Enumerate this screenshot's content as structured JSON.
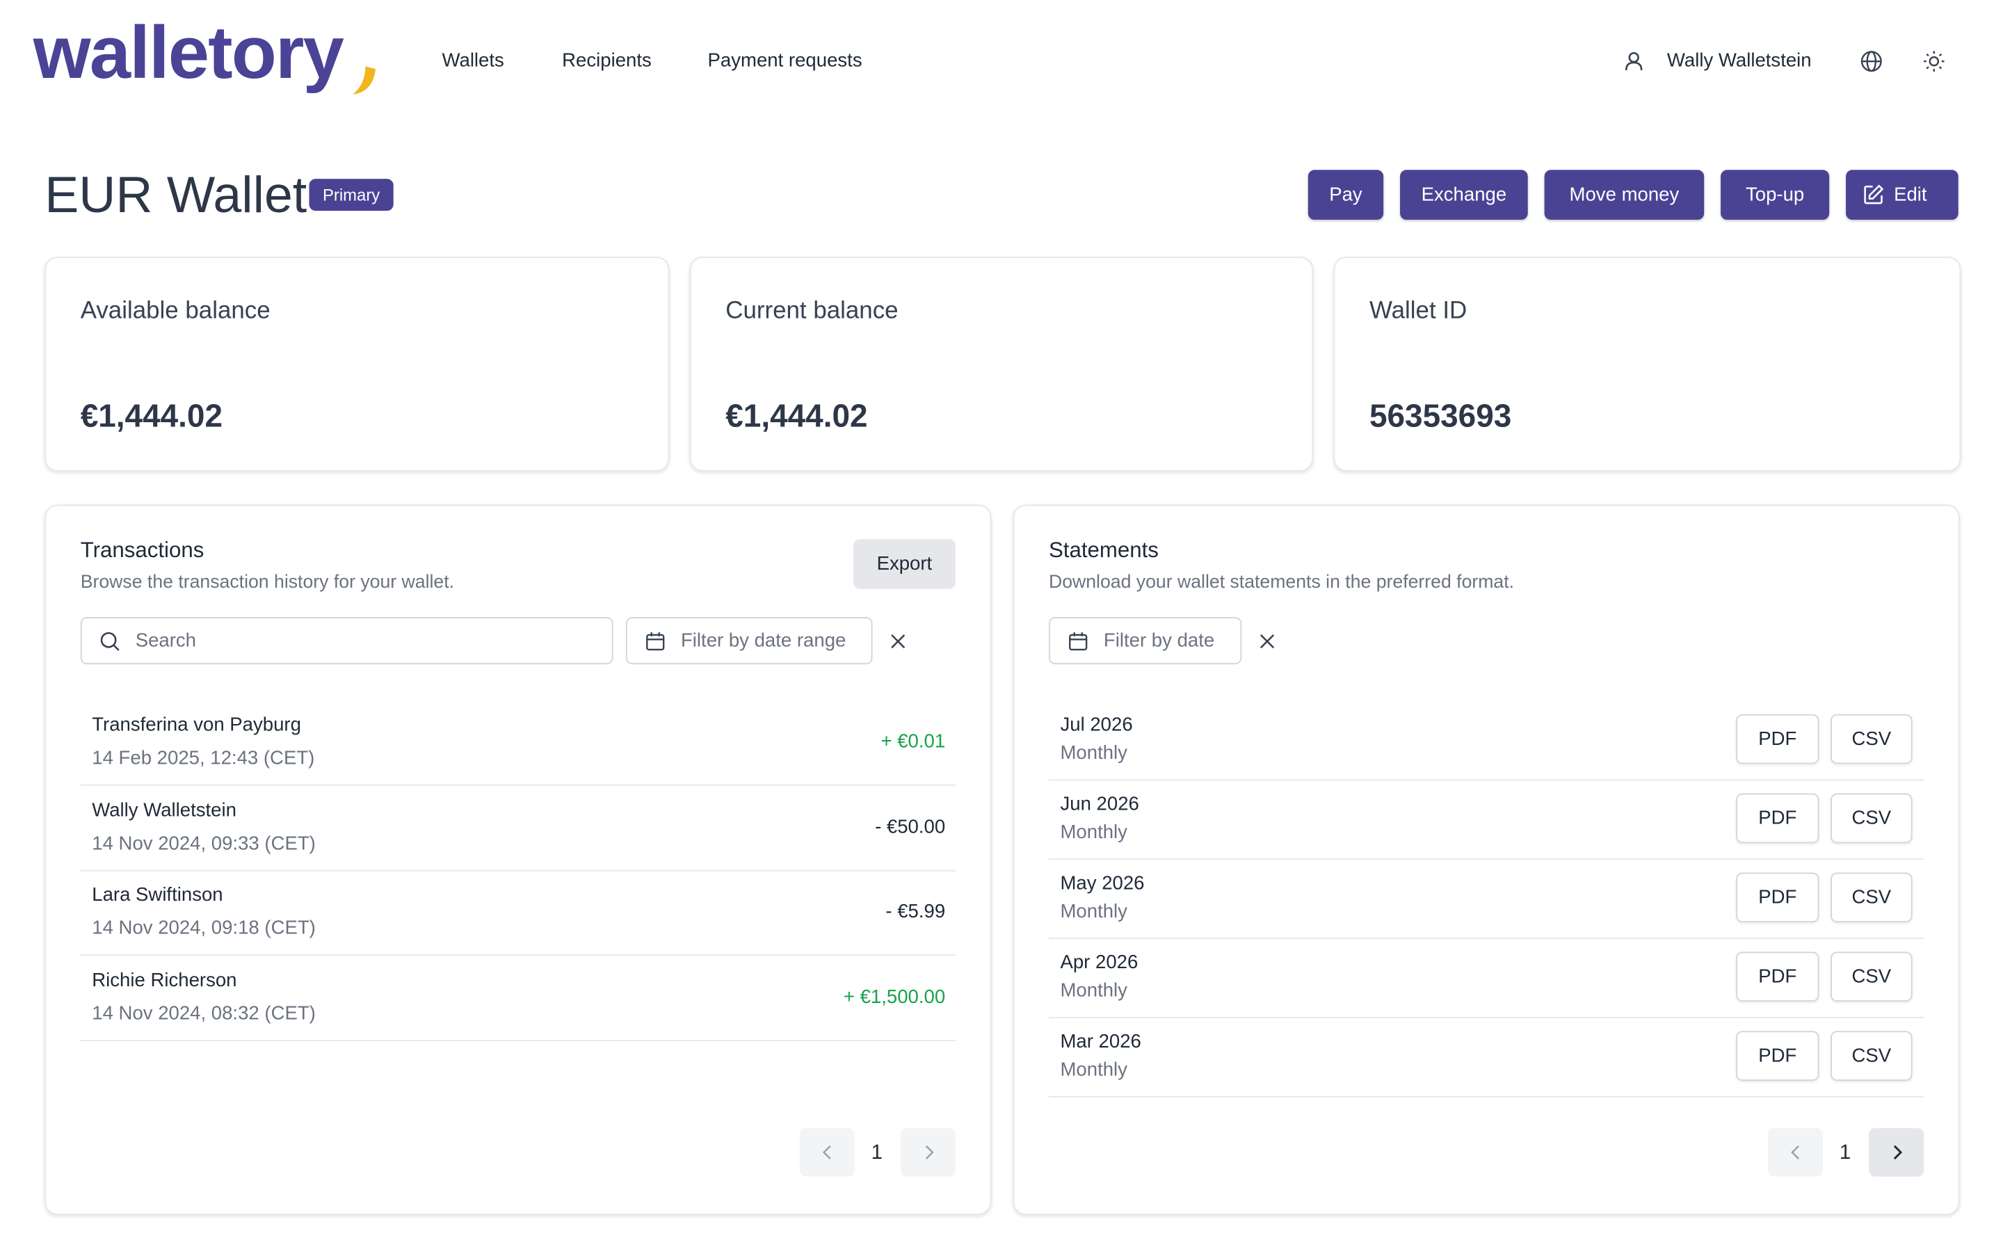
{
  "header": {
    "logo": "walletory",
    "nav": [
      "Wallets",
      "Recipients",
      "Payment requests"
    ],
    "user": "Wally Walletstein"
  },
  "page": {
    "title": "EUR Wallet",
    "badge": "Primary",
    "actions": [
      "Pay",
      "Exchange",
      "Move money",
      "Top-up",
      "Edit"
    ]
  },
  "cards": [
    {
      "label": "Available balance",
      "value": "€1,444.02"
    },
    {
      "label": "Current balance",
      "value": "€1,444.02"
    },
    {
      "label": "Wallet ID",
      "value": "56353693"
    }
  ],
  "transactions": {
    "title": "Transactions",
    "subtitle": "Browse the transaction history for your wallet.",
    "export": "Export",
    "search_placeholder": "Search",
    "date_placeholder": "Filter by date range",
    "rows": [
      {
        "name": "Transferina von Payburg",
        "date": "14 Feb 2025, 12:43 (CET)",
        "amount": "+ €0.01"
      },
      {
        "name": "Wally Walletstein",
        "date": "14 Nov 2024, 09:33 (CET)",
        "amount": "- €50.00"
      },
      {
        "name": "Lara Swiftinson",
        "date": "14 Nov 2024, 09:18 (CET)",
        "amount": "- €5.99"
      },
      {
        "name": "Richie Richerson",
        "date": "14 Nov 2024, 08:32 (CET)",
        "amount": "+ €1,500.00"
      }
    ],
    "page": "1"
  },
  "statements": {
    "title": "Statements",
    "subtitle": "Download your wallet statements in the preferred format.",
    "date_placeholder": "Filter by date",
    "rows": [
      {
        "period": "Jul 2026",
        "frequency": "Monthly"
      },
      {
        "period": "Jun 2026",
        "frequency": "Monthly"
      },
      {
        "period": "May 2026",
        "frequency": "Monthly"
      },
      {
        "period": "Apr 2026",
        "frequency": "Monthly"
      },
      {
        "period": "Mar 2026",
        "frequency": "Monthly"
      }
    ],
    "formats": [
      "PDF",
      "CSV"
    ],
    "page": "1"
  }
}
